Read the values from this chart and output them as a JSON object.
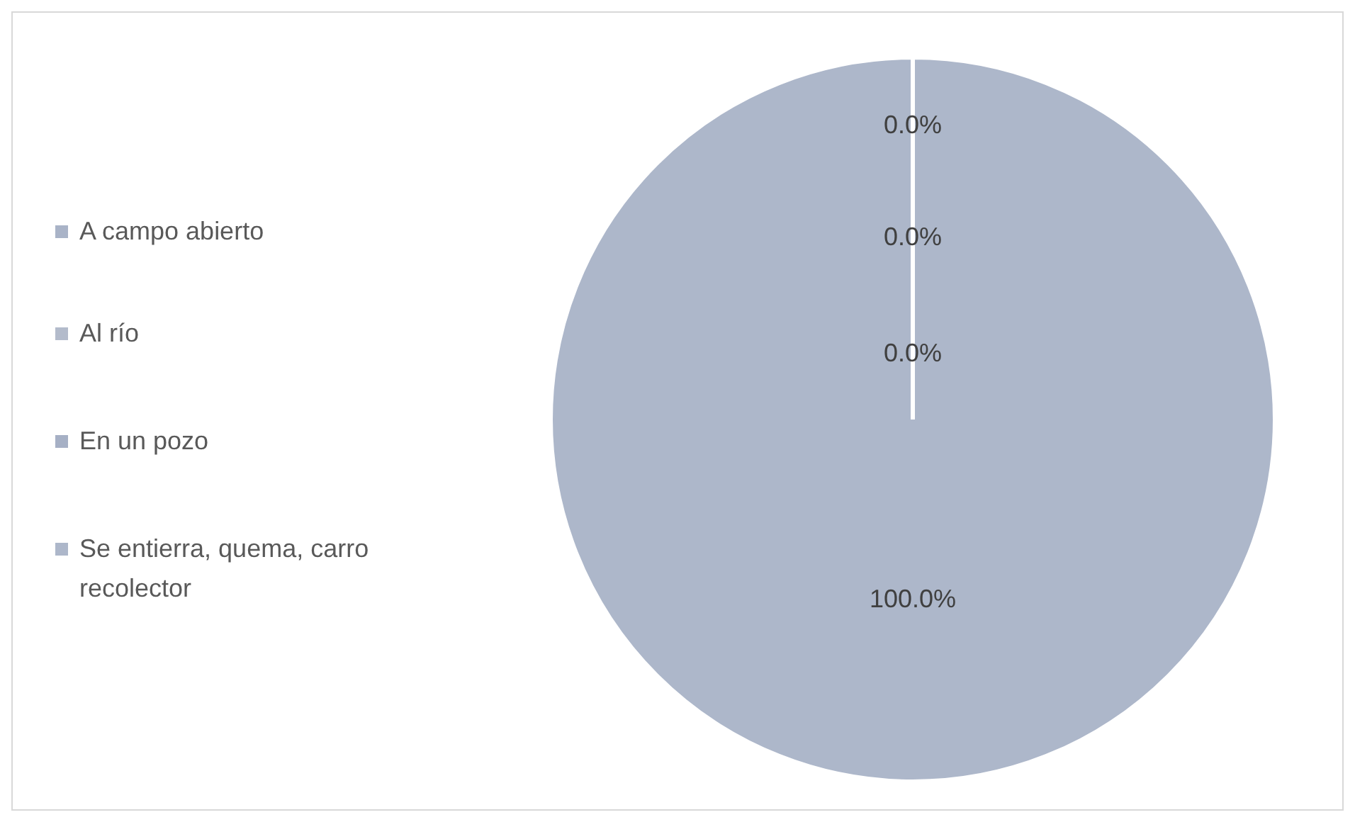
{
  "chart_data": {
    "type": "pie",
    "categories": [
      "A campo abierto",
      "Al río",
      "En un pozo",
      "Se entierra, quema, carro recolector"
    ],
    "values": [
      0,
      0,
      0,
      100
    ],
    "colors": [
      "#a9b3c7",
      "#b3bbcb",
      "#a6b0c5",
      "#adb7ca"
    ],
    "value_labels": [
      "0.0%",
      "0.0%",
      "0.0%",
      "100.0%"
    ],
    "legend": "left"
  }
}
